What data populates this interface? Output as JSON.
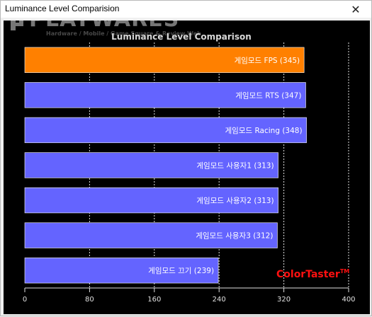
{
  "window": {
    "title": "Luminance Level Comparision",
    "close_glyph": "✕"
  },
  "watermark": {
    "brand": "PLAYWARES",
    "tagline": "Hardware / Mobile / Game Square & Review Web"
  },
  "branding": {
    "name": "ColorTaster",
    "mark": "TM"
  },
  "colors": {
    "highlight_bar": "#ff8000",
    "bar": "#6464ff",
    "plot_bg": "#000000",
    "brand_red": "#ff1010"
  },
  "chart_data": {
    "type": "bar",
    "orientation": "horizontal",
    "title": "Luminance Level Comparison",
    "categories": [
      "게임모드 FPS",
      "게임모드 RTS",
      "게임모드 Racing",
      "게임모드 사용자1",
      "게임모드 사용자2",
      "게임모드 사용자3",
      "게임모드 끄기"
    ],
    "bar_labels": [
      "게임모드 FPS (345)",
      "게임모드 RTS (347)",
      "게임모드 Racing (348)",
      "게임모드 사용자1 (313)",
      "게임모드 사용자2 (313)",
      "게임모드 사용자3 (312)",
      "게임모드 끄기 (239)"
    ],
    "values": [
      345,
      347,
      348,
      313,
      313,
      312,
      239
    ],
    "highlight_index": 0,
    "xlim": [
      0,
      400
    ],
    "xticks": [
      0,
      80,
      160,
      240,
      320,
      400
    ],
    "grid": "vertical dashed",
    "xlabel": "",
    "ylabel": ""
  }
}
